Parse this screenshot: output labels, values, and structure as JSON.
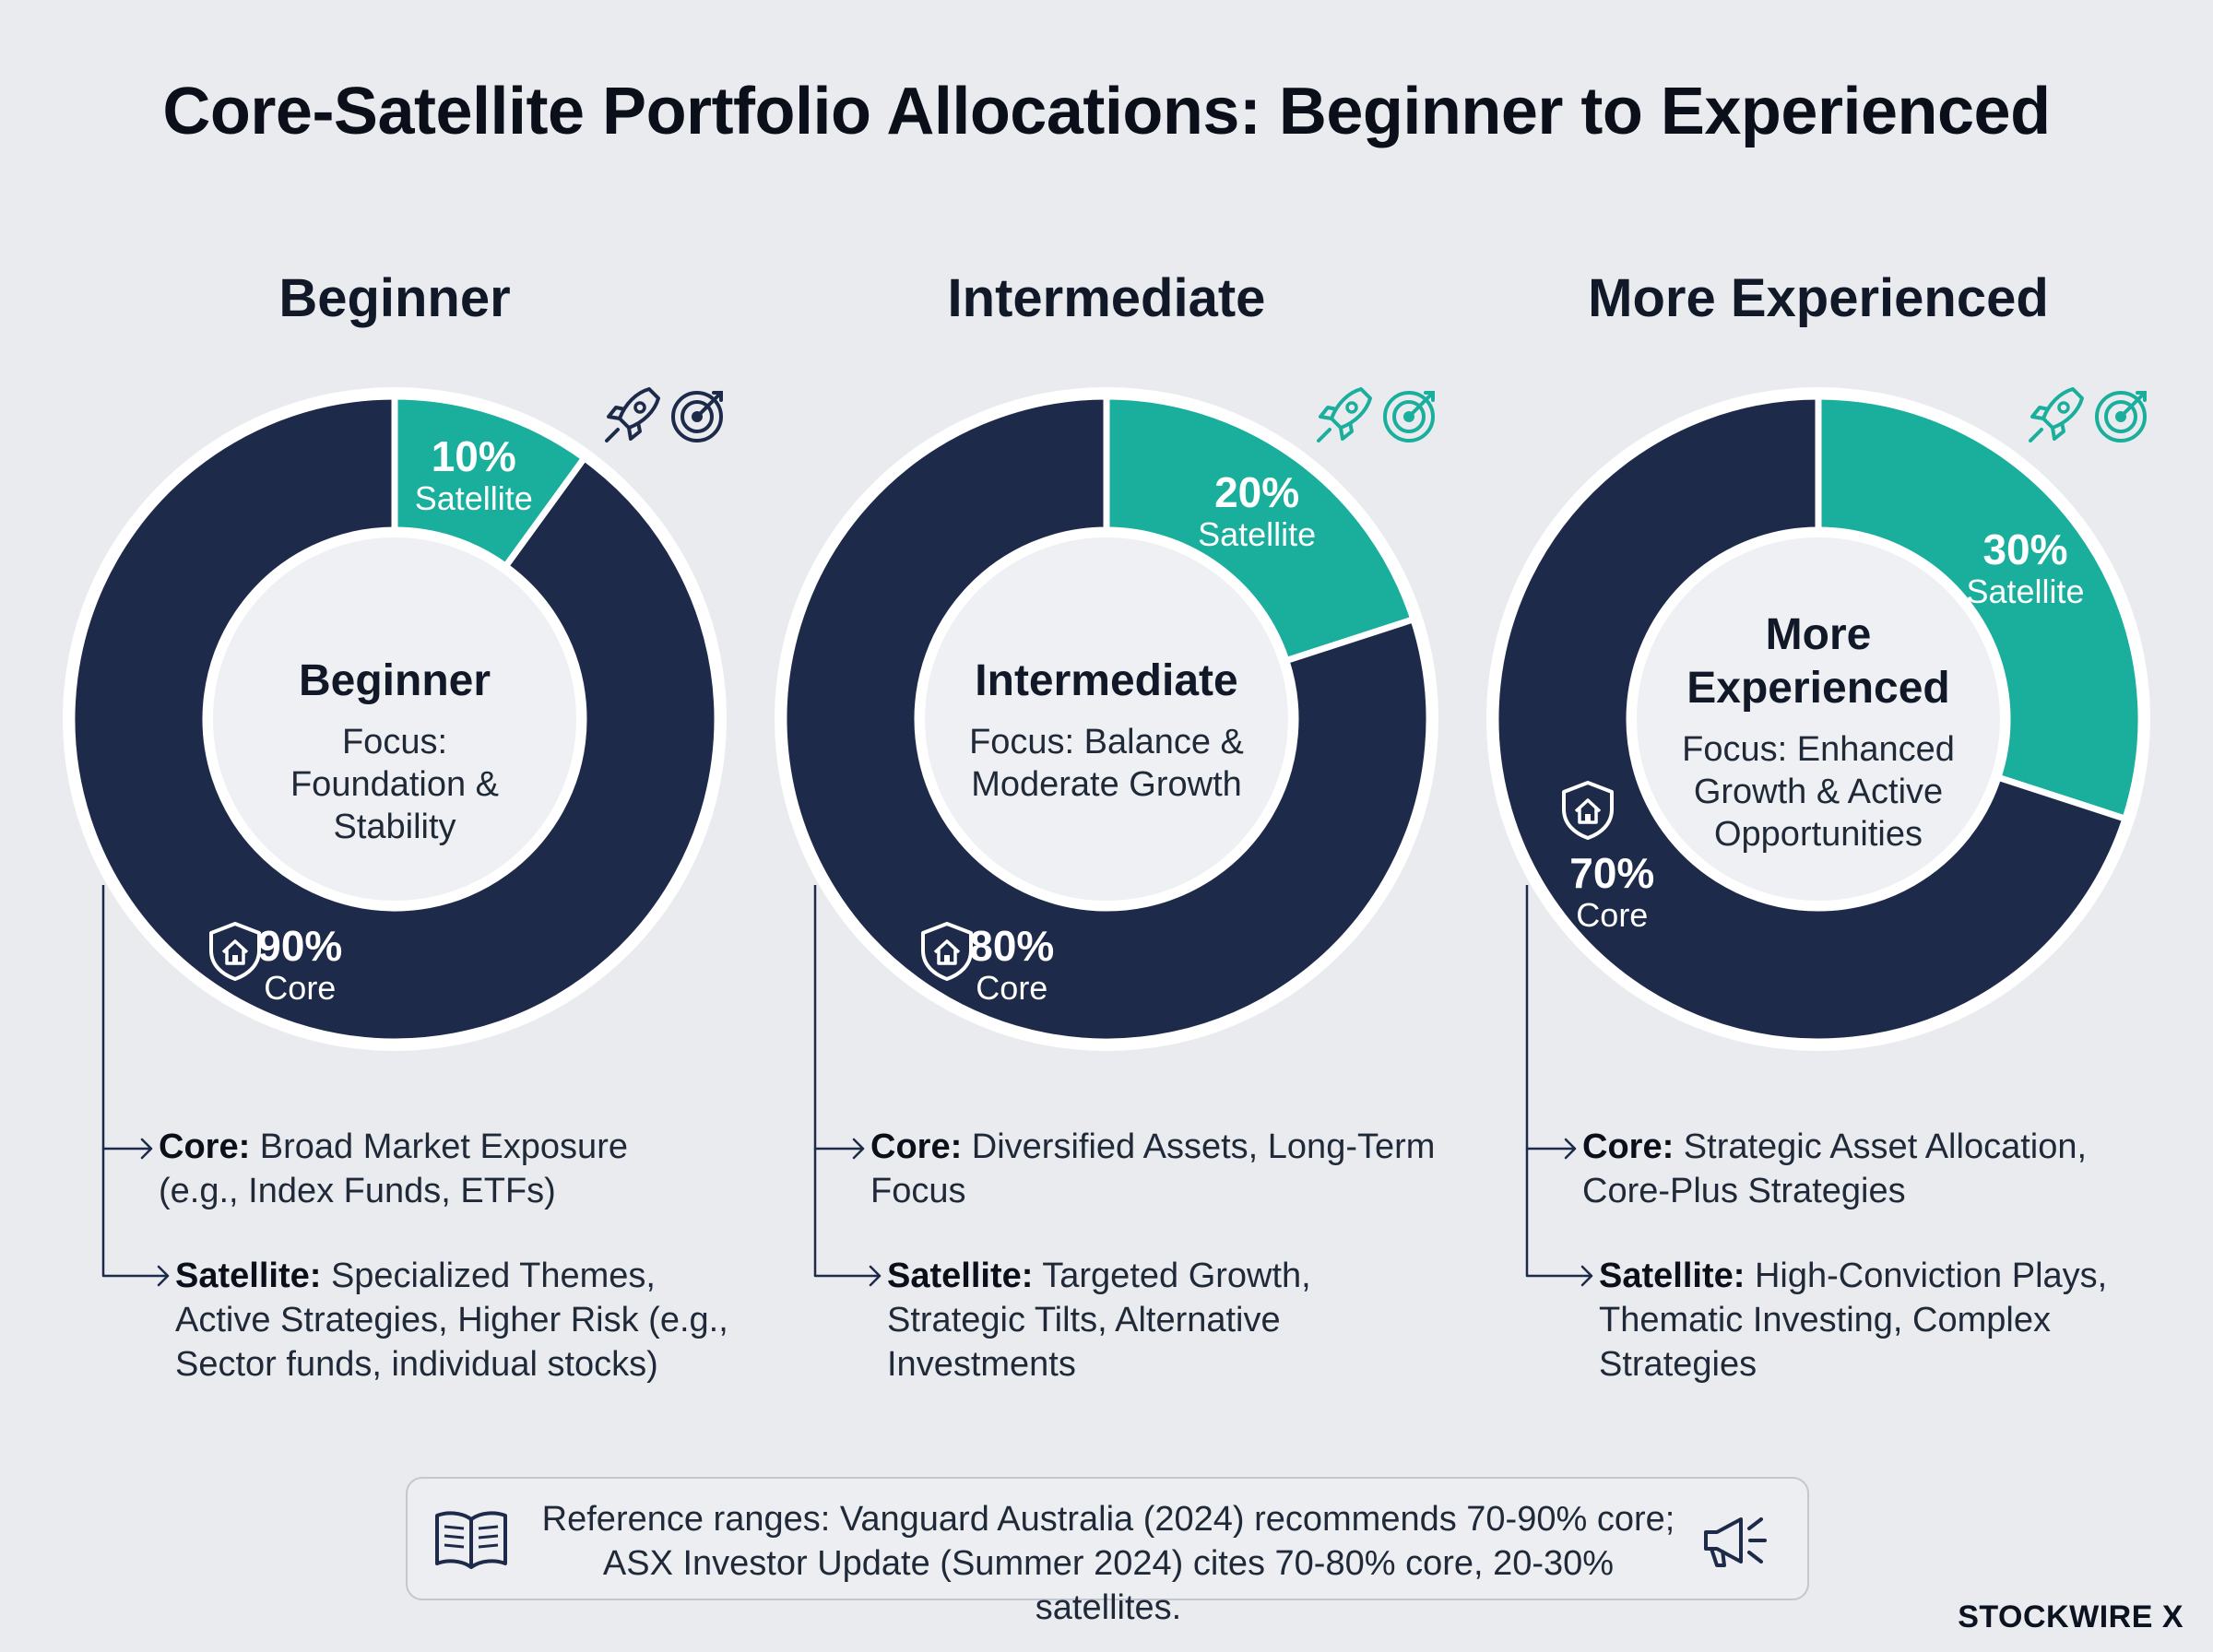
{
  "title": "Core-Satellite Portfolio Allocations: Beginner to Experienced",
  "colors": {
    "core": "#1d2a4a",
    "satellite": "#1aae9c",
    "background": "#e9ebef",
    "ring_border": "#ffffff",
    "icon_teal": "#1aae9c",
    "icon_navy": "#1d2a4a"
  },
  "icons": [
    "rocket-icon",
    "target-icon",
    "shield-home-icon",
    "book-icon",
    "megaphone-icon"
  ],
  "chart_data": [
    {
      "type": "pie",
      "title": "Beginner",
      "center_title": "Beginner",
      "focus": "Focus: Foundation & Stability",
      "slices": [
        {
          "label": "Satellite",
          "value": 10,
          "value_label": "10%"
        },
        {
          "label": "Core",
          "value": 90,
          "value_label": "90%"
        }
      ],
      "core_desc": {
        "lead": "Core:",
        "text": " Broad Market Exposure (e.g., Index Funds, ETFs)"
      },
      "satellite_desc": {
        "lead": "Satellite:",
        "text": " Specialized Themes, Active Strategies, Higher Risk (e.g., Sector funds, individual stocks)"
      }
    },
    {
      "type": "pie",
      "title": "Intermediate",
      "center_title": "Intermediate",
      "focus": "Focus: Balance & Moderate Growth",
      "slices": [
        {
          "label": "Satellite",
          "value": 20,
          "value_label": "20%"
        },
        {
          "label": "Core",
          "value": 80,
          "value_label": "80%"
        }
      ],
      "core_desc": {
        "lead": "Core:",
        "text": " Diversified Assets, Long-Term Focus"
      },
      "satellite_desc": {
        "lead": "Satellite:",
        "text": " Targeted Growth, Strategic Tilts, Alternative Investments"
      }
    },
    {
      "type": "pie",
      "title": "More Experienced",
      "center_title": "More Experienced",
      "focus": "Focus: Enhanced Growth & Active Opportunities",
      "slices": [
        {
          "label": "Satellite",
          "value": 30,
          "value_label": "30%"
        },
        {
          "label": "Core",
          "value": 70,
          "value_label": "70%"
        }
      ],
      "core_desc": {
        "lead": "Core:",
        "text": " Strategic Asset Allocation, Core-Plus Strategies"
      },
      "satellite_desc": {
        "lead": "Satellite:",
        "text": " High-Conviction Plays, Thematic Investing, Complex Strategies"
      }
    }
  ],
  "reference": {
    "line1": "Reference ranges: Vanguard Australia (2024) recommends 70-90% core;",
    "line2": "ASX Investor Update (Summer 2024) cites 70-80% core, 20-30% satellites."
  },
  "brand": "STOCKWIRE X"
}
